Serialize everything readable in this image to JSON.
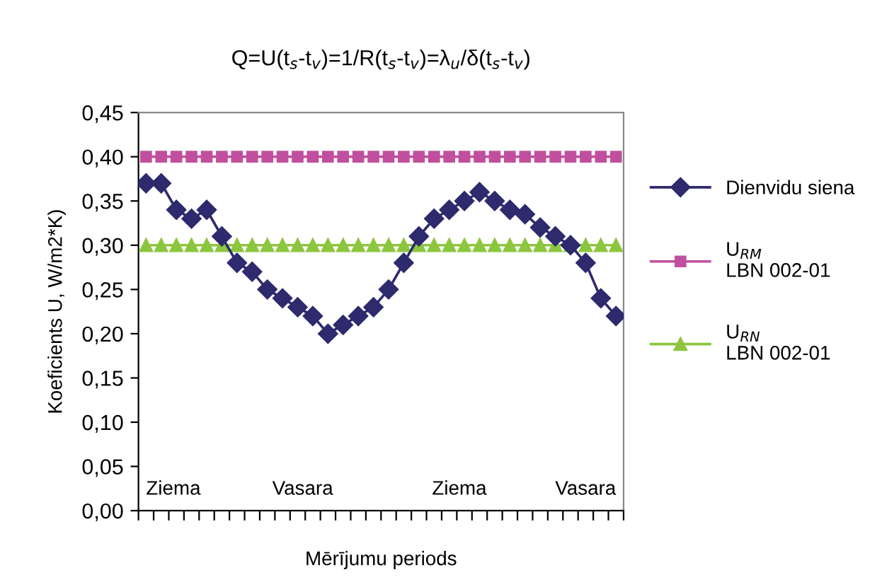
{
  "chart_data": {
    "type": "line",
    "title": "Q=U(t$_{s}$-t$_{v}$)=1/R(t$_{s}$-t$_{v}$)=λ$_{u}$/δ(t$_{s}$-t$_{v}$)",
    "xlabel": "Mērījumu periods",
    "ylabel": "Koeficients U, W/m2*K)",
    "categories": [
      null,
      null,
      null,
      null,
      null,
      null,
      null,
      null,
      null,
      null,
      null,
      null,
      null,
      null,
      null,
      null,
      null,
      null,
      null,
      null,
      null,
      null,
      null,
      null,
      null,
      null,
      null,
      null,
      null,
      null,
      null,
      null
    ],
    "series": [
      {
        "name": "Dienvidu siena",
        "color": "#2e2a6e",
        "marker": "diamond",
        "values": [
          0.37,
          0.37,
          0.34,
          0.33,
          0.34,
          0.31,
          0.28,
          0.27,
          0.25,
          0.24,
          0.23,
          0.22,
          0.2,
          0.21,
          0.22,
          0.23,
          0.25,
          0.28,
          0.31,
          0.33,
          0.34,
          0.35,
          0.36,
          0.35,
          0.34,
          0.335,
          0.32,
          0.31,
          0.3,
          0.28,
          0.24,
          0.22
        ]
      },
      {
        "name": "U$_{RM}$\nLBN 002-01",
        "color": "#c0509f",
        "marker": "square",
        "values": [
          0.4,
          0.4,
          0.4,
          0.4,
          0.4,
          0.4,
          0.4,
          0.4,
          0.4,
          0.4,
          0.4,
          0.4,
          0.4,
          0.4,
          0.4,
          0.4,
          0.4,
          0.4,
          0.4,
          0.4,
          0.4,
          0.4,
          0.4,
          0.4,
          0.4,
          0.4,
          0.4,
          0.4,
          0.4,
          0.4,
          0.4,
          0.4
        ]
      },
      {
        "name": "U$_{RN}$\nLBN 002-01",
        "color": "#8cc63f",
        "marker": "triangle",
        "values": [
          0.3,
          0.3,
          0.3,
          0.3,
          0.3,
          0.3,
          0.3,
          0.3,
          0.3,
          0.3,
          0.3,
          0.3,
          0.3,
          0.3,
          0.3,
          0.3,
          0.3,
          0.3,
          0.3,
          0.3,
          0.3,
          0.3,
          0.3,
          0.3,
          0.3,
          0.3,
          0.3,
          0.3,
          0.3,
          0.3,
          0.3,
          0.3
        ]
      }
    ],
    "annotations": [
      "Ziema",
      "Vasara",
      "Ziema",
      "Vasara"
    ],
    "ylim": [
      0,
      0.45
    ],
    "yticks": [
      {
        "value": 0,
        "label": "0,00"
      },
      {
        "value": 0.05,
        "label": "0,05"
      },
      {
        "value": 0.1,
        "label": "0,10"
      },
      {
        "value": 0.15,
        "label": "0,15"
      },
      {
        "value": 0.2,
        "label": "0,20"
      },
      {
        "value": 0.25,
        "label": "0,25"
      },
      {
        "value": 0.3,
        "label": "0,30"
      },
      {
        "value": 0.35,
        "label": "0,35"
      },
      {
        "value": 0.4,
        "label": "0,40"
      },
      {
        "value": 0.45,
        "label": "0,45"
      }
    ],
    "grid": false,
    "legend": "right",
    "line_style": "solid"
  }
}
